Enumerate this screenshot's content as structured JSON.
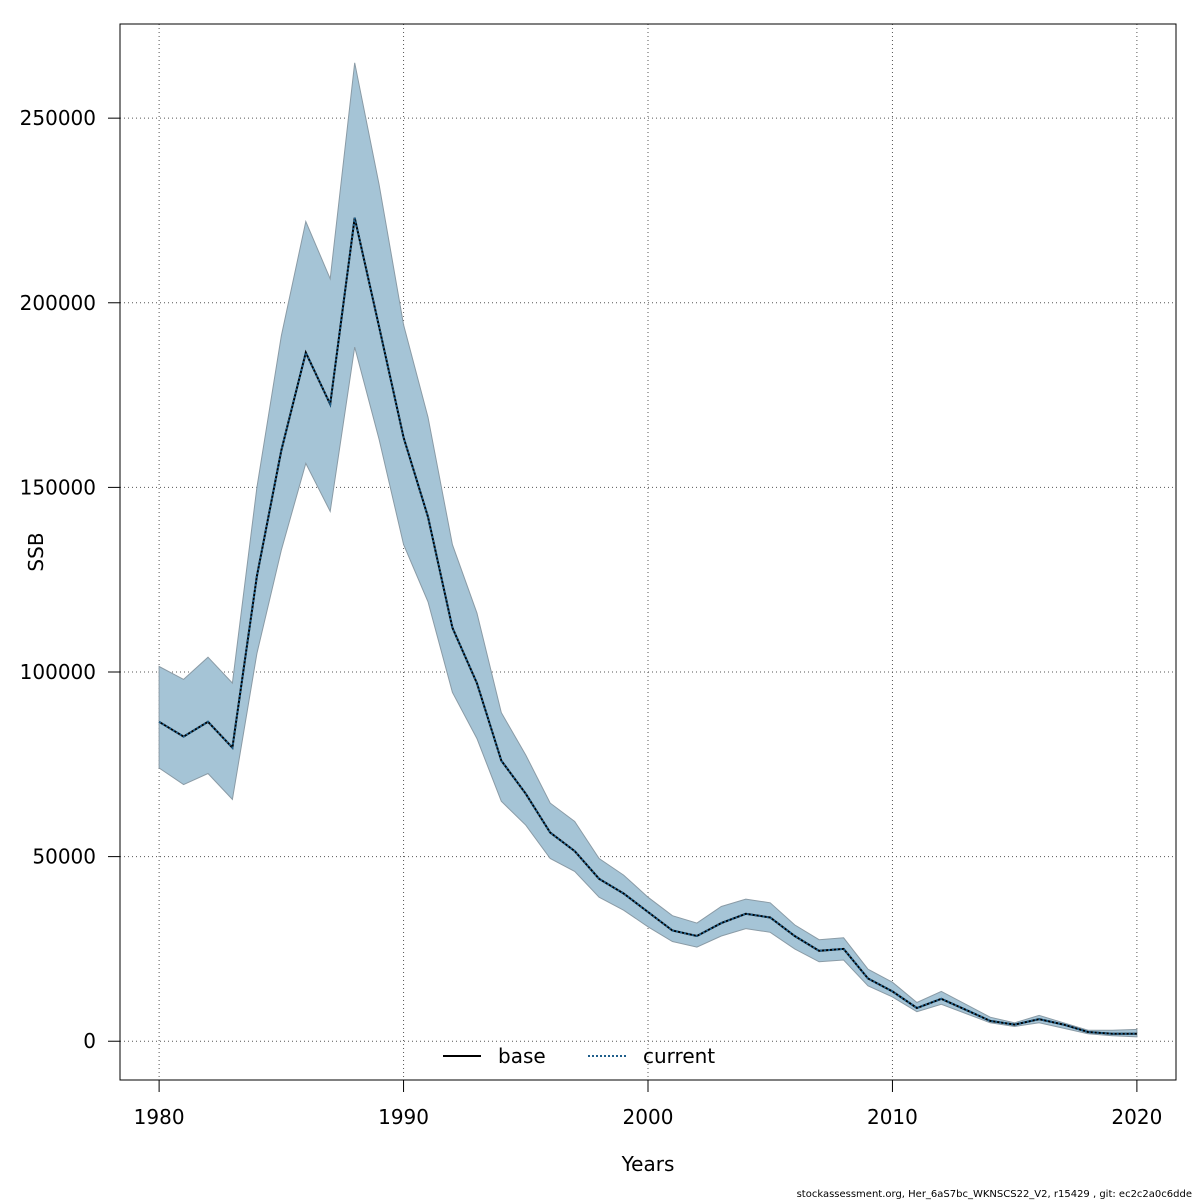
{
  "chart_data": {
    "type": "area",
    "title": "",
    "xlabel": "Years",
    "ylabel": "SSB",
    "xlim": [
      1978.4,
      2021.6
    ],
    "ylim": [
      -10500,
      275500
    ],
    "x_ticks": [
      1980,
      1990,
      2000,
      2010,
      2020
    ],
    "y_ticks": [
      0,
      50000,
      100000,
      150000,
      200000,
      250000
    ],
    "grid": true,
    "legend_position": "bottom-center",
    "colors": {
      "band": "#a5c4d6",
      "band_edge": "#8a9ba6",
      "base": "#000000",
      "current": "#1f5f8b"
    },
    "x": [
      1980,
      1981,
      1982,
      1983,
      1984,
      1985,
      1986,
      1987,
      1988,
      1989,
      1990,
      1991,
      1992,
      1993,
      1994,
      1995,
      1996,
      1997,
      1998,
      1999,
      2000,
      2001,
      2002,
      2003,
      2004,
      2005,
      2006,
      2007,
      2008,
      2009,
      2010,
      2011,
      2012,
      2013,
      2014,
      2015,
      2016,
      2017,
      2018,
      2019,
      2020
    ],
    "series": [
      {
        "name": "base",
        "line": "solid",
        "values": [
          86500,
          82500,
          86500,
          79500,
          126000,
          160000,
          186500,
          172500,
          223000,
          193500,
          163500,
          142000,
          112000,
          97000,
          76000,
          67000,
          56500,
          51500,
          44000,
          40000,
          35000,
          30000,
          28500,
          32000,
          34500,
          33500,
          28500,
          24500,
          25000,
          17000,
          13500,
          9000,
          11500,
          8500,
          5500,
          4500,
          6000,
          4500,
          2500,
          2000,
          2000
        ]
      },
      {
        "name": "current",
        "line": "dotted",
        "values": [
          86500,
          82500,
          86500,
          79500,
          126000,
          160000,
          186500,
          172500,
          223000,
          193500,
          163500,
          142000,
          112000,
          97000,
          76000,
          67000,
          56500,
          51500,
          44000,
          40000,
          35000,
          30000,
          28500,
          32000,
          34500,
          33500,
          28500,
          24500,
          25000,
          17000,
          13500,
          9000,
          11500,
          8500,
          5500,
          4500,
          6000,
          4500,
          2500,
          2000,
          2000
        ]
      }
    ],
    "band": {
      "lower": [
        74000,
        69500,
        72500,
        65500,
        105000,
        133000,
        156500,
        143500,
        188000,
        163000,
        134500,
        119000,
        94500,
        82000,
        65000,
        58500,
        49500,
        46000,
        39000,
        35500,
        31000,
        27000,
        25500,
        28500,
        30500,
        29500,
        25000,
        21500,
        22000,
        15000,
        12000,
        8000,
        10000,
        7500,
        5000,
        4000,
        5000,
        3500,
        2000,
        1500,
        1200
      ],
      "upper": [
        101500,
        98000,
        104000,
        97000,
        150000,
        191000,
        222000,
        206500,
        265000,
        232000,
        194000,
        169000,
        134500,
        116000,
        89000,
        77500,
        64500,
        59500,
        49500,
        45000,
        39000,
        34000,
        32000,
        36500,
        38500,
        37500,
        31500,
        27500,
        28000,
        19500,
        16000,
        10500,
        13500,
        10000,
        6500,
        5000,
        7000,
        5000,
        3000,
        3000,
        3200
      ]
    }
  },
  "footer": "stockassessment.org, Her_6aS7bc_WKNSCS22_V2, r15429 , git: ec2c2a0c6dde"
}
